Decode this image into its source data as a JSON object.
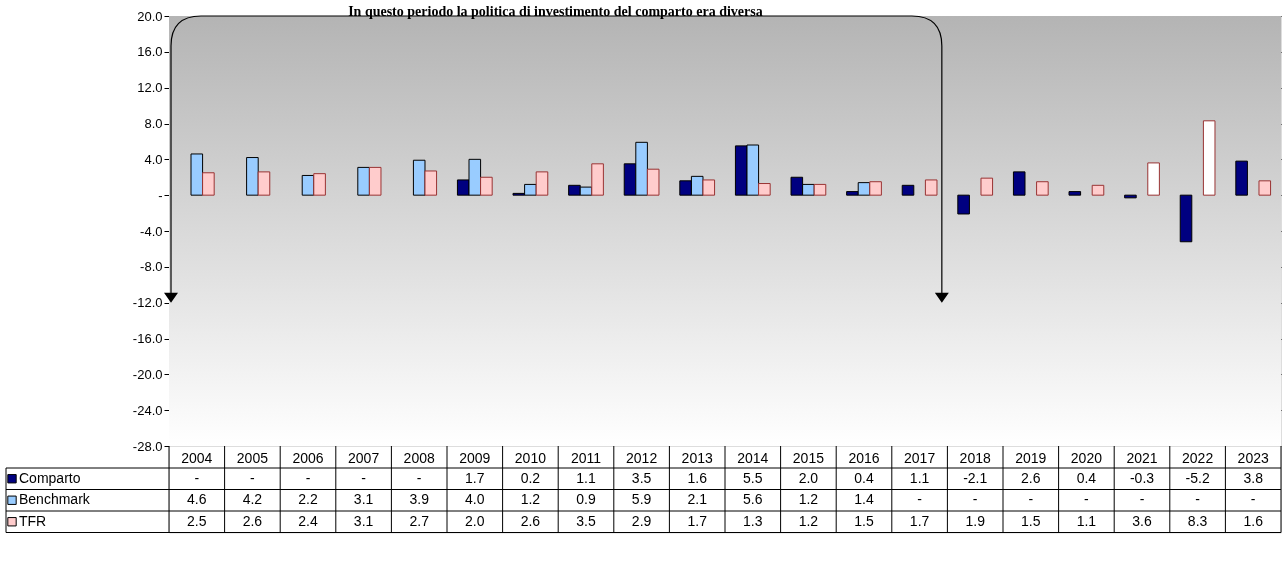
{
  "chart_data": {
    "type": "bar",
    "categories": [
      "2004",
      "2005",
      "2006",
      "2007",
      "2008",
      "2009",
      "2010",
      "2011",
      "2012",
      "2013",
      "2014",
      "2015",
      "2016",
      "2017",
      "2018",
      "2019",
      "2020",
      "2021",
      "2022",
      "2023"
    ],
    "series": [
      {
        "name": "Comparto",
        "color": "#000080",
        "values": [
          null,
          null,
          null,
          null,
          null,
          1.7,
          0.2,
          1.1,
          3.5,
          1.6,
          5.5,
          2.0,
          0.4,
          1.1,
          -2.1,
          2.6,
          0.4,
          -0.3,
          -5.2,
          3.8
        ],
        "value_labels": [
          "-",
          "-",
          "-",
          "-",
          "-",
          "1.7",
          "0.2",
          "1.1",
          "3.5",
          "1.6",
          "5.5",
          "2.0",
          "0.4",
          "1.1",
          "-2.1",
          "2.6",
          "0.4",
          "-0.3",
          "-5.2",
          "3.8"
        ]
      },
      {
        "name": "Benchmark",
        "color": "#99ccff",
        "values": [
          4.6,
          4.2,
          2.2,
          3.1,
          3.9,
          4.0,
          1.2,
          0.9,
          5.9,
          2.1,
          5.6,
          1.2,
          1.4,
          null,
          null,
          null,
          null,
          null,
          null,
          null
        ],
        "value_labels": [
          "4.6",
          "4.2",
          "2.2",
          "3.1",
          "3.9",
          "4.0",
          "1.2",
          "0.9",
          "5.9",
          "2.1",
          "5.6",
          "1.2",
          "1.4",
          "-",
          "-",
          "-",
          "-",
          "-",
          "-",
          "-"
        ]
      },
      {
        "name": "TFR",
        "color": "#ffcccc",
        "colors": [
          "#ffcccc",
          "#ffcccc",
          "#ffcccc",
          "#ffcccc",
          "#ffcccc",
          "#ffcccc",
          "#ffcccc",
          "#ffcccc",
          "#ffcccc",
          "#ffcccc",
          "#ffcccc",
          "#ffcccc",
          "#ffcccc",
          "#ffcccc",
          "#ffcccc",
          "#ffcccc",
          "#ffcccc",
          "#ffffff",
          "#ffffff",
          "#ffcccc"
        ],
        "values": [
          2.5,
          2.6,
          2.4,
          3.1,
          2.7,
          2.0,
          2.6,
          3.5,
          2.9,
          1.7,
          1.3,
          1.2,
          1.5,
          1.7,
          1.9,
          1.5,
          1.1,
          3.6,
          8.3,
          1.6
        ],
        "value_labels": [
          "2.5",
          "2.6",
          "2.4",
          "3.1",
          "2.7",
          "2.0",
          "2.6",
          "3.5",
          "2.9",
          "1.7",
          "1.3",
          "1.2",
          "1.5",
          "1.7",
          "1.9",
          "1.5",
          "1.1",
          "3.6",
          "8.3",
          "1.6"
        ]
      }
    ],
    "ylim": [
      -28,
      20
    ],
    "yticks": [
      {
        "value": 20,
        "label": "20.0"
      },
      {
        "value": 16,
        "label": "16.0"
      },
      {
        "value": 12,
        "label": "12.0"
      },
      {
        "value": 8,
        "label": "8.0"
      },
      {
        "value": 4,
        "label": "4.0"
      },
      {
        "value": 0,
        "label": "-"
      },
      {
        "value": -4,
        "label": "-4.0"
      },
      {
        "value": -8,
        "label": "-8.0"
      },
      {
        "value": -12,
        "label": "-12.0"
      },
      {
        "value": -16,
        "label": "-16.0"
      },
      {
        "value": -20,
        "label": "-20.0"
      },
      {
        "value": -24,
        "label": "-24.0"
      },
      {
        "value": -28,
        "label": "-28.0"
      }
    ],
    "grid": "y",
    "legend": "bottom left",
    "annotations": [
      "In questo periodo la politica di investimento del comparto era diversa"
    ]
  }
}
